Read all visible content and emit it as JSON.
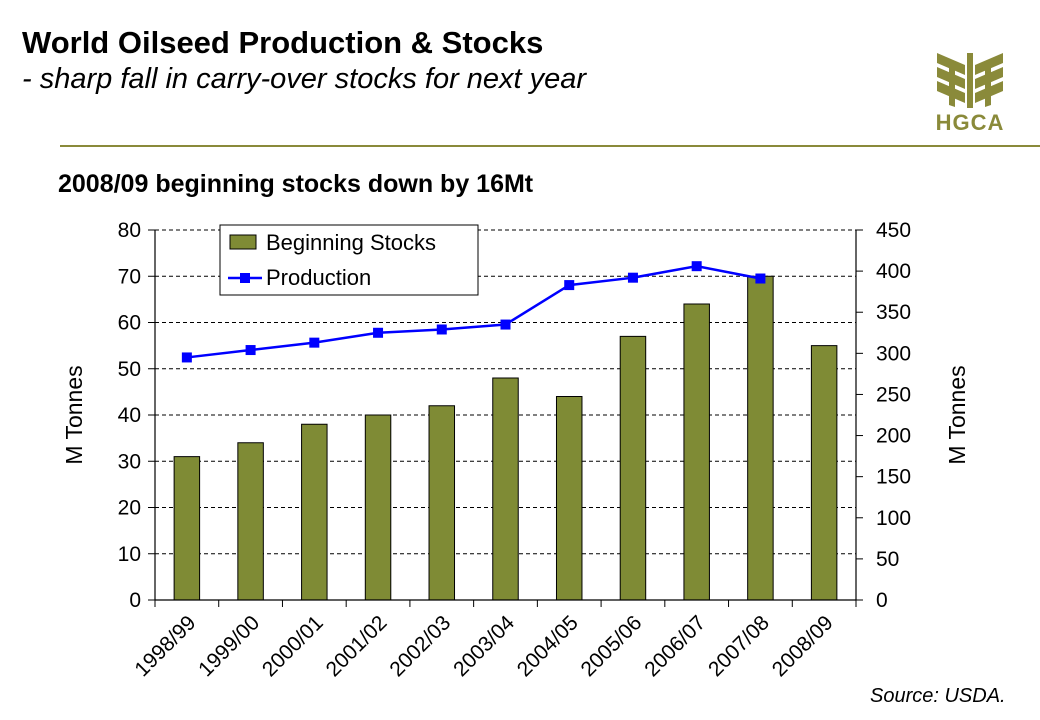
{
  "header": {
    "title": "World Oilseed Production & Stocks",
    "subtitle": "- sharp fall in carry-over stocks for next year"
  },
  "logo": {
    "text": "HGCA",
    "icon": "wheat-logo-icon",
    "color": "#8a8a3a"
  },
  "source": "Source: USDA.",
  "chart_data": {
    "type": "bar+line",
    "title": "2008/09 beginning stocks down by 16Mt",
    "categories": [
      "1998/99",
      "1999/00",
      "2000/01",
      "2001/02",
      "2002/03",
      "2003/04",
      "2004/05",
      "2005/06",
      "2006/07",
      "2007/08",
      "2008/09"
    ],
    "series": [
      {
        "name": "Beginning Stocks",
        "type": "bar",
        "axis": "left",
        "color": "#7f8b35",
        "values": [
          31,
          34,
          38,
          40,
          42,
          48,
          44,
          57,
          64,
          70,
          55
        ]
      },
      {
        "name": "Production",
        "type": "line",
        "axis": "right",
        "color": "#0000ff",
        "values": [
          295,
          304,
          313,
          325,
          329,
          335,
          383,
          392,
          406,
          391,
          null
        ]
      }
    ],
    "ylabel_left": "M Tonnes",
    "ylabel_right": "M Tonnes",
    "ylim_left": [
      0,
      80
    ],
    "yticks_left": [
      0,
      10,
      20,
      30,
      40,
      50,
      60,
      70,
      80
    ],
    "ylim_right": [
      0,
      450
    ],
    "yticks_right": [
      0,
      50,
      100,
      150,
      200,
      250,
      300,
      350,
      400,
      450
    ],
    "grid": "horizontal dashed",
    "legend": "top-left"
  }
}
